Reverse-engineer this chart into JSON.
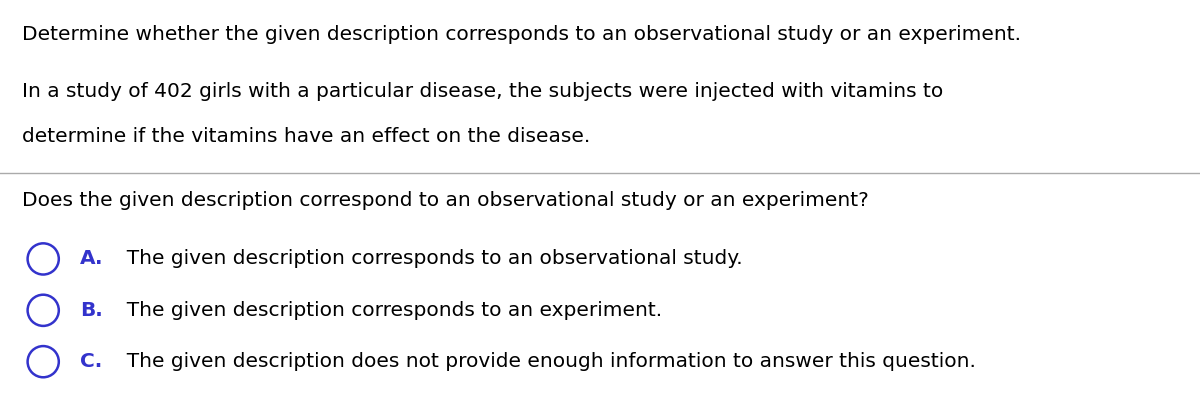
{
  "background_color": "#ffffff",
  "line_color": "#aaaaaa",
  "text_color": "#000000",
  "blue_color": "#3333cc",
  "title_text": "Determine whether the given description corresponds to an observational study or an experiment.",
  "body_text_line1": "In a study of 402 girls with a particular disease, the subjects were injected with vitamins to",
  "body_text_line2": "determine if the vitamins have an effect on the disease.",
  "question_text": "Does the given description correspond to an observational study or an experiment?",
  "option_a_label": "A.",
  "option_a_text": "  The given description corresponds to an observational study.",
  "option_b_label": "B.",
  "option_b_text": "  The given description corresponds to an experiment.",
  "option_c_label": "C.",
  "option_c_text": "  The given description does not provide enough information to answer this question.",
  "font_size": 14.5,
  "figsize": [
    12.0,
    4.11
  ],
  "dpi": 100
}
